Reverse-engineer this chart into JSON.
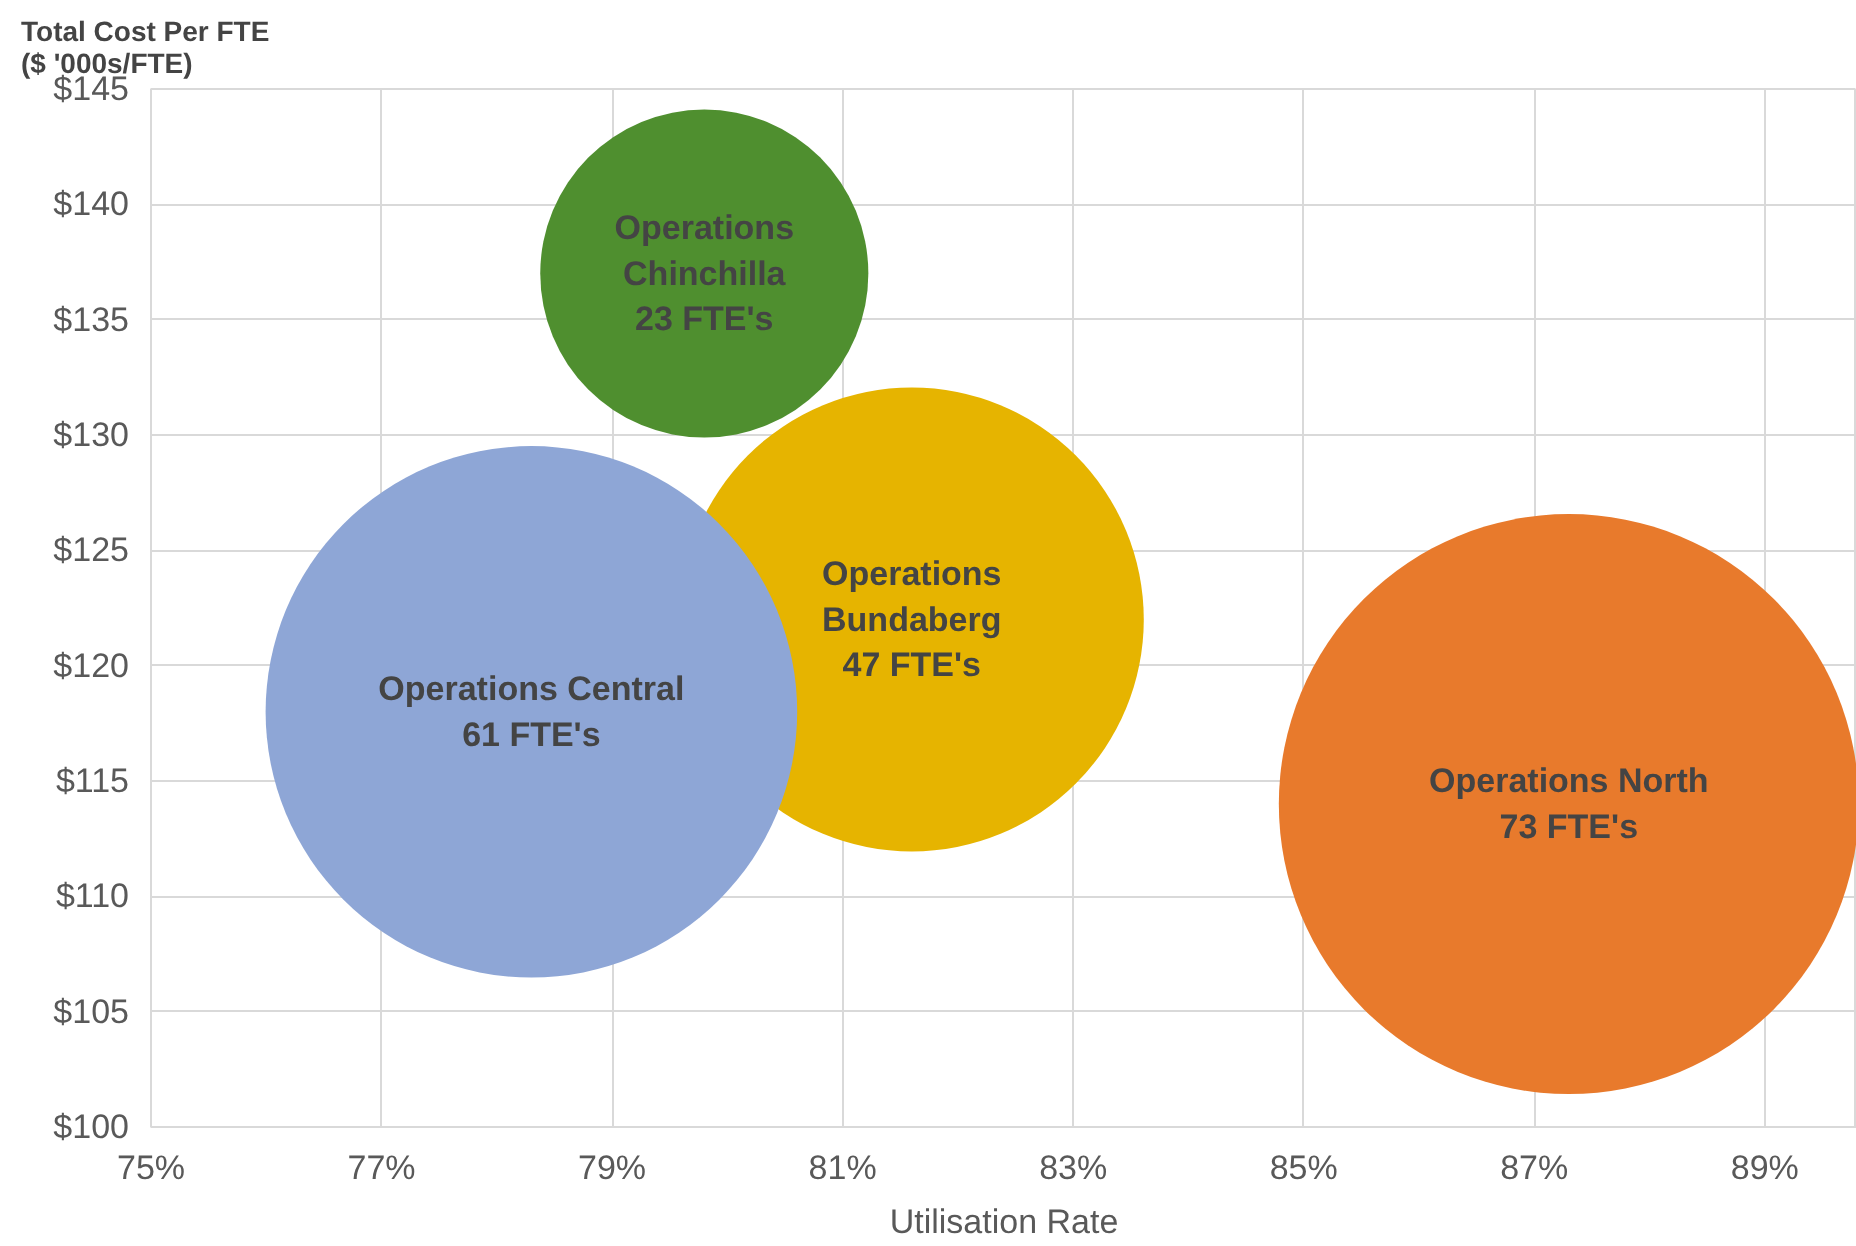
{
  "chart_data": {
    "type": "bubble",
    "ylabel": "Total Cost Per FTE\n($ '000s/FTE)",
    "xlabel": "Utilisation Rate",
    "x": [
      79.8,
      81.6,
      78.3,
      87.3
    ],
    "values": [
      137,
      122,
      118,
      114
    ],
    "sizes": [
      0.32,
      0.64,
      0.84,
      1
    ],
    "colors": [
      "#4f8f2f",
      "#e6b400",
      "#8ea6d6",
      "#e87a2c"
    ],
    "annotations": [
      {
        "text": "Operations\nChinchilla\n23 FTE's",
        "x": 79.8,
        "y": 137
      },
      {
        "text": "Operations\nBundaberg\n47 FTE's",
        "x": 81.6,
        "y": 122
      },
      {
        "text": "Operations Central\n61 FTE's",
        "x": 78.3,
        "y": 118
      },
      {
        "text": "Operations North\n73 FTE's",
        "x": 87.3,
        "y": 114
      }
    ],
    "xlim": [
      75,
      89.8
    ],
    "ylim": [
      100,
      145
    ],
    "xticks": [
      {
        "value": 75,
        "label": "75%"
      },
      {
        "value": 77,
        "label": "77%"
      },
      {
        "value": 79,
        "label": "79%"
      },
      {
        "value": 81,
        "label": "81%"
      },
      {
        "value": 83,
        "label": "83%"
      },
      {
        "value": 85,
        "label": "85%"
      },
      {
        "value": 87,
        "label": "87%"
      },
      {
        "value": 89,
        "label": "89%"
      }
    ],
    "yticks": [
      {
        "value": 100,
        "label": "$100"
      },
      {
        "value": 105,
        "label": "$105"
      },
      {
        "value": 110,
        "label": "$110"
      },
      {
        "value": 115,
        "label": "$115"
      },
      {
        "value": 120,
        "label": "$120"
      },
      {
        "value": 125,
        "label": "$125"
      },
      {
        "value": 130,
        "label": "$130"
      },
      {
        "value": 135,
        "label": "$135"
      },
      {
        "value": 140,
        "label": "$140"
      },
      {
        "value": 145,
        "label": "$145"
      }
    ],
    "grid": true
  }
}
